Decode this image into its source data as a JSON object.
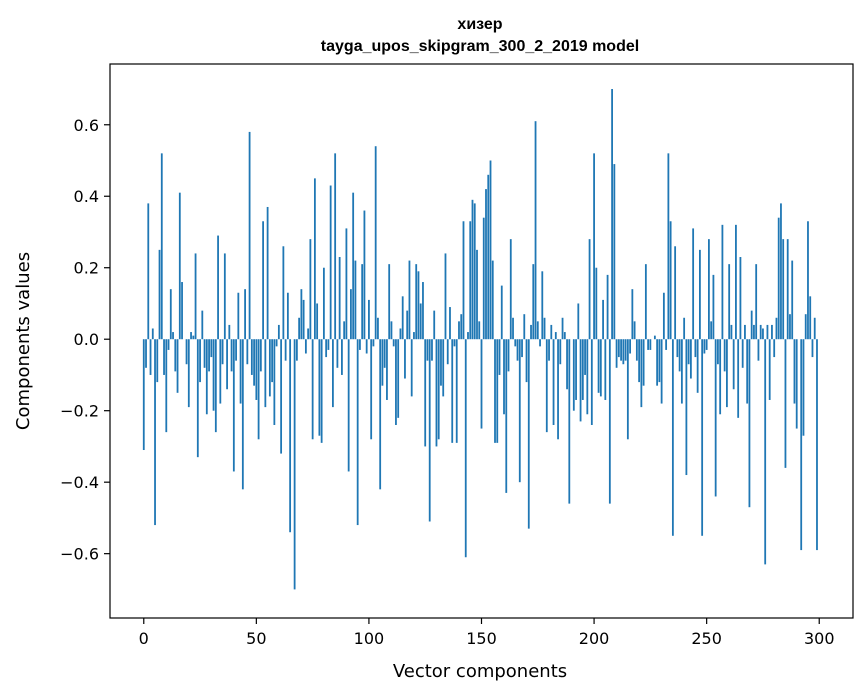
{
  "chart_data": {
    "type": "bar",
    "title": "хизер",
    "subtitle": "tayga_upos_skipgram_300_2_2019 model",
    "xlabel": "Vector components",
    "ylabel": "Components values",
    "xlim": [
      -15,
      315
    ],
    "ylim": [
      -0.78,
      0.77
    ],
    "xticks": [
      0,
      50,
      100,
      150,
      200,
      250,
      300
    ],
    "yticks": [
      -0.6,
      -0.4,
      -0.2,
      0.0,
      0.2,
      0.4,
      0.6
    ],
    "ytick_labels": [
      "−0.6",
      "−0.4",
      "−0.2",
      "0.0",
      "0.2",
      "0.4",
      "0.6"
    ],
    "grid": false,
    "bar_color": "#1f77b4",
    "values": [
      -0.31,
      -0.08,
      0.38,
      -0.1,
      0.03,
      -0.52,
      -0.12,
      0.25,
      0.52,
      -0.1,
      -0.26,
      -0.03,
      0.14,
      0.02,
      -0.09,
      -0.15,
      0.41,
      0.16,
      0.0,
      -0.07,
      -0.19,
      0.02,
      0.01,
      0.24,
      -0.33,
      -0.12,
      0.08,
      -0.08,
      -0.21,
      -0.09,
      -0.05,
      -0.2,
      -0.26,
      0.29,
      -0.18,
      -0.07,
      0.24,
      -0.14,
      0.04,
      -0.09,
      -0.37,
      -0.06,
      0.13,
      -0.18,
      -0.42,
      0.14,
      -0.07,
      0.58,
      -0.1,
      -0.13,
      -0.17,
      -0.28,
      -0.09,
      0.33,
      -0.19,
      0.37,
      -0.16,
      -0.12,
      -0.24,
      -0.02,
      0.04,
      -0.32,
      0.26,
      -0.06,
      0.13,
      -0.54,
      0.0,
      -0.7,
      -0.06,
      0.06,
      0.14,
      0.11,
      -0.04,
      0.03,
      0.28,
      -0.28,
      0.45,
      0.1,
      -0.27,
      -0.29,
      0.2,
      -0.05,
      -0.03,
      0.43,
      -0.19,
      0.52,
      -0.08,
      0.23,
      -0.1,
      0.05,
      0.31,
      -0.37,
      0.14,
      0.41,
      0.22,
      -0.52,
      -0.03,
      0.21,
      0.36,
      -0.04,
      0.11,
      -0.28,
      -0.02,
      0.54,
      0.06,
      -0.42,
      -0.13,
      -0.08,
      -0.17,
      0.21,
      0.05,
      -0.02,
      -0.24,
      -0.22,
      0.03,
      0.12,
      -0.11,
      0.08,
      0.22,
      -0.16,
      0.02,
      0.21,
      0.19,
      0.1,
      0.16,
      -0.3,
      -0.06,
      -0.51,
      -0.06,
      0.08,
      -0.3,
      -0.28,
      -0.13,
      -0.16,
      0.24,
      -0.07,
      0.09,
      -0.29,
      -0.02,
      -0.29,
      0.05,
      0.07,
      0.33,
      -0.61,
      0.02,
      0.33,
      0.39,
      0.38,
      0.25,
      0.05,
      -0.25,
      0.34,
      0.42,
      0.46,
      0.5,
      0.22,
      -0.29,
      -0.29,
      -0.1,
      0.15,
      -0.21,
      -0.43,
      -0.09,
      0.28,
      0.06,
      -0.02,
      -0.06,
      -0.4,
      -0.05,
      0.07,
      -0.12,
      -0.53,
      0.04,
      0.21,
      0.61,
      0.05,
      -0.02,
      0.19,
      0.06,
      -0.26,
      -0.06,
      0.04,
      -0.24,
      0.02,
      -0.28,
      -0.07,
      0.06,
      0.02,
      -0.14,
      -0.46,
      0.0,
      -0.2,
      -0.17,
      0.1,
      -0.23,
      -0.17,
      -0.1,
      -0.21,
      0.28,
      -0.24,
      0.52,
      0.2,
      -0.15,
      -0.16,
      0.11,
      -0.17,
      0.18,
      -0.46,
      0.7,
      0.49,
      -0.08,
      -0.05,
      -0.06,
      -0.07,
      -0.06,
      -0.28,
      -0.04,
      0.14,
      0.05,
      -0.06,
      -0.12,
      -0.19,
      -0.13,
      0.21,
      -0.03,
      -0.03,
      0.0,
      0.01,
      -0.13,
      -0.12,
      -0.18,
      0.13,
      -0.03,
      0.52,
      0.33,
      -0.55,
      0.26,
      -0.05,
      -0.09,
      -0.18,
      0.06,
      -0.38,
      -0.07,
      -0.11,
      0.31,
      -0.05,
      -0.15,
      0.25,
      -0.55,
      -0.04,
      -0.03,
      0.28,
      0.05,
      0.18,
      -0.44,
      -0.07,
      -0.21,
      0.32,
      -0.09,
      -0.19,
      0.21,
      0.04,
      -0.14,
      0.32,
      -0.22,
      0.23,
      -0.08,
      0.04,
      -0.18,
      -0.47,
      0.08,
      0.04,
      0.21,
      -0.06,
      0.04,
      0.03,
      -0.63,
      0.04,
      -0.17,
      0.04,
      -0.05,
      0.06,
      0.34,
      0.38,
      0.28,
      -0.36,
      0.28,
      0.07,
      0.22,
      -0.18,
      -0.25,
      0.0,
      -0.59,
      -0.27,
      0.07,
      0.33,
      0.12,
      -0.05,
      0.06,
      -0.59
    ]
  }
}
